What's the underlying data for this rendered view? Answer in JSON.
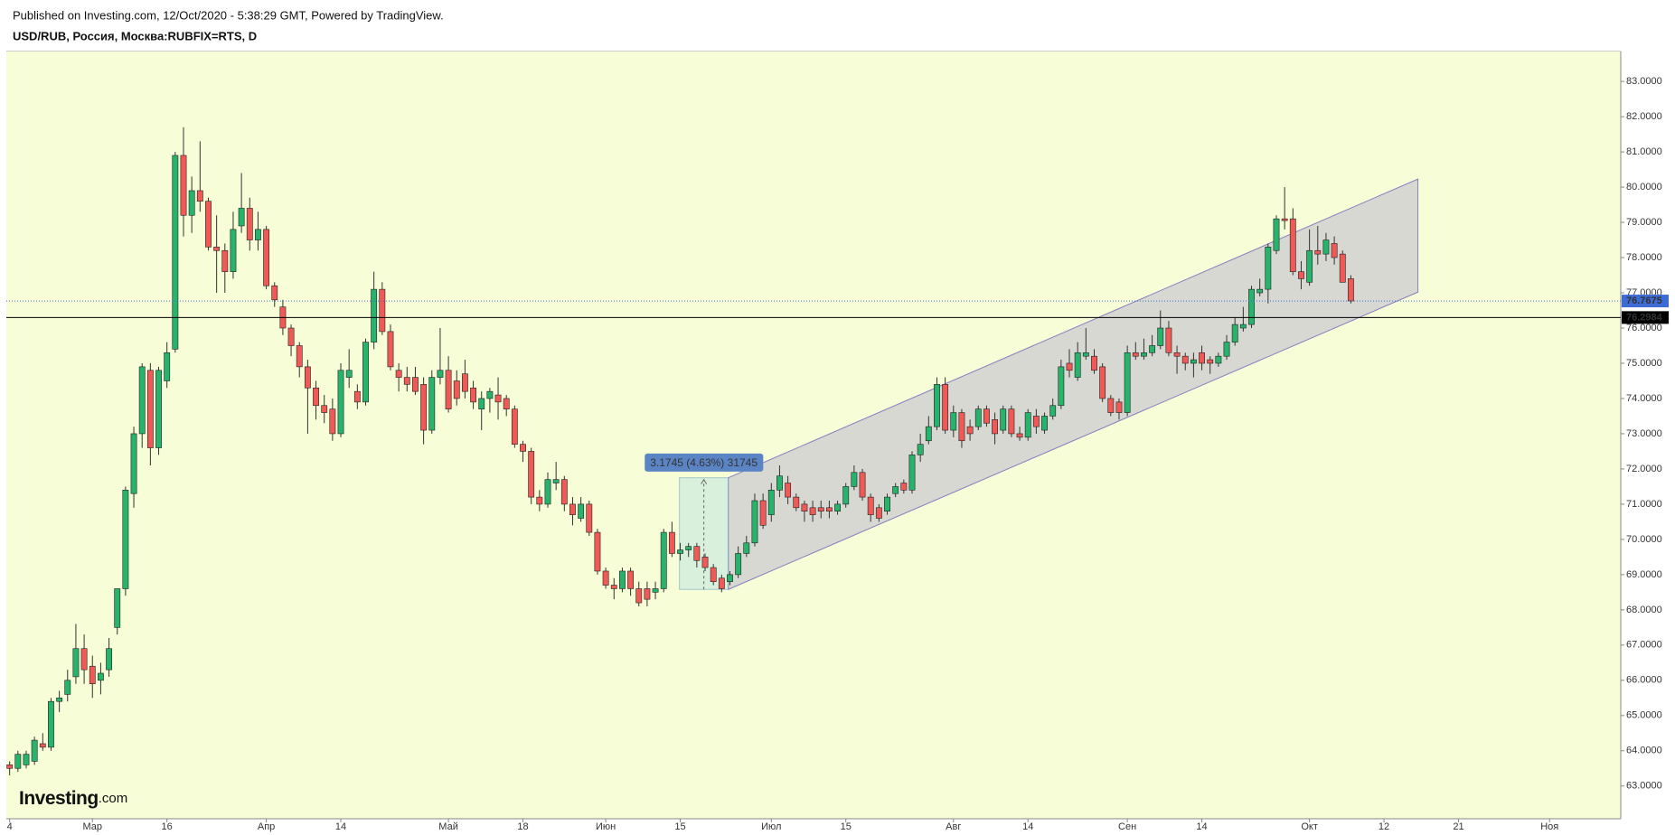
{
  "header": {
    "published": "Published on Investing.com, 12/Oct/2020 - 5:38:29 GMT, Powered by TradingView.",
    "symbol": "USD/RUB, Россия, Москва:RUBFIX=RTS, D"
  },
  "logo": {
    "brand": "Investing",
    "suffix": ".com"
  },
  "chart_data": {
    "type": "candlestick",
    "up_color": "#27b36b",
    "down_color": "#ef5a57",
    "wick_color": "#333333",
    "background": "#f6fdd7",
    "xlim": [
      -0.4,
      194.6
    ],
    "ylim": [
      62.07,
      83.85
    ],
    "xticks": [
      {
        "value": 0,
        "label": "4"
      },
      {
        "value": 10,
        "label": "Мар"
      },
      {
        "value": 19,
        "label": "16"
      },
      {
        "value": 31,
        "label": "Апр"
      },
      {
        "value": 40,
        "label": "14"
      },
      {
        "value": 53,
        "label": "Май"
      },
      {
        "value": 62,
        "label": "18"
      },
      {
        "value": 72,
        "label": "Июн"
      },
      {
        "value": 81,
        "label": "15"
      },
      {
        "value": 92,
        "label": "Июл"
      },
      {
        "value": 101,
        "label": "15"
      },
      {
        "value": 114,
        "label": "Авг"
      },
      {
        "value": 123,
        "label": "14"
      },
      {
        "value": 135,
        "label": "Сен"
      },
      {
        "value": 144,
        "label": "14"
      },
      {
        "value": 157,
        "label": "Окт"
      },
      {
        "value": 166,
        "label": "12"
      },
      {
        "value": 175,
        "label": "21"
      },
      {
        "value": 186,
        "label": "Ноя"
      }
    ],
    "yticks": [
      {
        "value": 63,
        "label": "63.0000"
      },
      {
        "value": 64,
        "label": "64.0000"
      },
      {
        "value": 65,
        "label": "65.0000"
      },
      {
        "value": 66,
        "label": "66.0000"
      },
      {
        "value": 67,
        "label": "67.0000"
      },
      {
        "value": 68,
        "label": "68.0000"
      },
      {
        "value": 69,
        "label": "69.0000"
      },
      {
        "value": 70,
        "label": "70.0000"
      },
      {
        "value": 71,
        "label": "71.0000"
      },
      {
        "value": 72,
        "label": "72.0000"
      },
      {
        "value": 73,
        "label": "73.0000"
      },
      {
        "value": 74,
        "label": "74.0000"
      },
      {
        "value": 75,
        "label": "75.0000"
      },
      {
        "value": 76,
        "label": "76.0000"
      },
      {
        "value": 77,
        "label": "77.0000"
      },
      {
        "value": 78,
        "label": "78.0000"
      },
      {
        "value": 79,
        "label": "79.0000"
      },
      {
        "value": 80,
        "label": "80.0000"
      },
      {
        "value": 81,
        "label": "81.0000"
      },
      {
        "value": 82,
        "label": "82.0000"
      },
      {
        "value": 83,
        "label": "83.0000"
      }
    ],
    "price_lines": [
      {
        "value": 76.7675,
        "color": "#3d6bd6",
        "dashed": true
      },
      {
        "value": 76.2984,
        "color": "#000000",
        "dashed": false
      }
    ],
    "channel": {
      "x": [
        86.8,
        170.1
      ],
      "lower": [
        68.58,
        77.02
      ],
      "upper": [
        71.75,
        80.23
      ],
      "color": "#8a7cc0"
    },
    "measure": {
      "x": [
        80.9,
        86.8
      ],
      "y": [
        68.58,
        71.75
      ],
      "label": "3.1745 (4.63%) 31745",
      "color": "#5b84c4"
    },
    "candles": [
      [
        63.6,
        63.7,
        63.3,
        63.5
      ],
      [
        63.5,
        64.0,
        63.4,
        63.9
      ],
      [
        63.6,
        64.0,
        63.5,
        63.9
      ],
      [
        63.7,
        64.4,
        63.6,
        64.3
      ],
      [
        64.2,
        64.5,
        64.0,
        64.1
      ],
      [
        64.1,
        65.5,
        64.0,
        65.4
      ],
      [
        65.4,
        65.7,
        65.1,
        65.5
      ],
      [
        65.6,
        66.3,
        65.4,
        66.0
      ],
      [
        66.1,
        67.6,
        65.9,
        66.9
      ],
      [
        66.9,
        67.3,
        65.9,
        66.3
      ],
      [
        66.4,
        66.7,
        65.5,
        65.9
      ],
      [
        66.0,
        66.5,
        65.6,
        66.2
      ],
      [
        66.3,
        67.2,
        66.1,
        66.9
      ],
      [
        67.5,
        68.6,
        67.3,
        68.6
      ],
      [
        68.6,
        71.5,
        68.4,
        71.4
      ],
      [
        71.3,
        73.2,
        70.9,
        73.0
      ],
      [
        73.0,
        75.0,
        72.6,
        74.9
      ],
      [
        74.8,
        75.0,
        72.1,
        72.6
      ],
      [
        72.6,
        74.9,
        72.4,
        74.8
      ],
      [
        74.5,
        75.6,
        74.3,
        75.3
      ],
      [
        75.4,
        81.0,
        75.3,
        80.9
      ],
      [
        80.9,
        81.7,
        78.6,
        79.2
      ],
      [
        79.2,
        80.3,
        78.7,
        79.9
      ],
      [
        79.9,
        81.3,
        79.3,
        79.6
      ],
      [
        79.6,
        79.7,
        78.2,
        78.3
      ],
      [
        78.3,
        79.2,
        77.0,
        78.2
      ],
      [
        78.2,
        78.4,
        77.0,
        77.6
      ],
      [
        77.6,
        79.3,
        77.4,
        78.8
      ],
      [
        78.9,
        80.4,
        78.7,
        79.4
      ],
      [
        79.4,
        79.7,
        78.2,
        78.5
      ],
      [
        78.5,
        79.3,
        78.2,
        78.8
      ],
      [
        78.8,
        78.9,
        77.1,
        77.2
      ],
      [
        77.2,
        77.3,
        76.6,
        76.8
      ],
      [
        76.6,
        76.8,
        75.8,
        76.0
      ],
      [
        76.0,
        76.1,
        75.2,
        75.5
      ],
      [
        75.5,
        75.6,
        74.6,
        74.9
      ],
      [
        74.9,
        75.1,
        73.0,
        74.3
      ],
      [
        74.3,
        74.5,
        73.4,
        73.8
      ],
      [
        73.8,
        74.1,
        73.3,
        73.6
      ],
      [
        73.7,
        74.0,
        72.8,
        73.0
      ],
      [
        73.0,
        75.0,
        72.9,
        74.8
      ],
      [
        74.6,
        75.4,
        74.3,
        74.8
      ],
      [
        74.2,
        74.4,
        73.7,
        73.9
      ],
      [
        73.9,
        75.7,
        73.8,
        75.6
      ],
      [
        75.6,
        77.6,
        75.4,
        77.1
      ],
      [
        77.1,
        77.3,
        75.8,
        75.9
      ],
      [
        75.9,
        76.1,
        74.8,
        74.9
      ],
      [
        74.8,
        75.0,
        74.2,
        74.6
      ],
      [
        74.6,
        74.9,
        74.2,
        74.4
      ],
      [
        74.6,
        74.9,
        74.1,
        74.2
      ],
      [
        74.4,
        74.6,
        72.7,
        73.1
      ],
      [
        73.1,
        74.8,
        73.0,
        74.6
      ],
      [
        74.6,
        76.0,
        74.4,
        74.8
      ],
      [
        74.8,
        75.2,
        73.6,
        73.7
      ],
      [
        74.5,
        74.8,
        73.8,
        74.0
      ],
      [
        74.7,
        75.1,
        74.0,
        74.2
      ],
      [
        74.3,
        74.5,
        73.7,
        73.9
      ],
      [
        73.7,
        74.2,
        73.1,
        74.0
      ],
      [
        74.0,
        74.3,
        73.6,
        74.2
      ],
      [
        74.1,
        74.6,
        73.4,
        73.9
      ],
      [
        74.0,
        74.1,
        73.5,
        73.7
      ],
      [
        73.7,
        73.8,
        72.6,
        72.7
      ],
      [
        72.7,
        72.8,
        72.2,
        72.5
      ],
      [
        72.5,
        72.6,
        71.0,
        71.2
      ],
      [
        71.2,
        71.4,
        70.8,
        71.0
      ],
      [
        71.0,
        71.9,
        70.9,
        71.7
      ],
      [
        71.6,
        72.2,
        71.4,
        71.7
      ],
      [
        71.7,
        71.8,
        70.8,
        71.0
      ],
      [
        71.0,
        71.2,
        70.4,
        70.7
      ],
      [
        70.6,
        71.2,
        70.5,
        71.0
      ],
      [
        71.0,
        71.1,
        70.1,
        70.2
      ],
      [
        70.2,
        70.3,
        69.0,
        69.1
      ],
      [
        69.1,
        69.2,
        68.6,
        68.7
      ],
      [
        68.7,
        68.9,
        68.3,
        68.6
      ],
      [
        68.6,
        69.2,
        68.5,
        69.1
      ],
      [
        69.1,
        69.2,
        68.4,
        68.6
      ],
      [
        68.6,
        68.8,
        68.1,
        68.2
      ],
      [
        68.6,
        68.8,
        68.1,
        68.3
      ],
      [
        68.5,
        68.8,
        68.3,
        68.6
      ],
      [
        68.6,
        70.3,
        68.5,
        70.2
      ],
      [
        70.2,
        70.5,
        69.5,
        69.6
      ],
      [
        69.6,
        69.9,
        69.4,
        69.7
      ],
      [
        69.7,
        69.9,
        69.5,
        69.8
      ],
      [
        69.8,
        69.9,
        69.2,
        69.4
      ],
      [
        69.5,
        69.6,
        69.1,
        69.2
      ],
      [
        69.2,
        69.3,
        68.7,
        68.8
      ],
      [
        68.9,
        69.0,
        68.5,
        68.6
      ],
      [
        68.8,
        69.1,
        68.7,
        69.0
      ],
      [
        69.0,
        69.8,
        68.9,
        69.6
      ],
      [
        69.6,
        70.1,
        69.5,
        69.9
      ],
      [
        69.9,
        71.3,
        69.8,
        71.1
      ],
      [
        71.1,
        71.3,
        70.3,
        70.4
      ],
      [
        70.7,
        71.6,
        70.5,
        71.4
      ],
      [
        71.4,
        72.1,
        71.2,
        71.8
      ],
      [
        71.6,
        71.8,
        71.0,
        71.2
      ],
      [
        71.2,
        71.3,
        70.8,
        70.9
      ],
      [
        71.0,
        71.1,
        70.5,
        70.8
      ],
      [
        70.9,
        71.1,
        70.5,
        70.7
      ],
      [
        70.9,
        71.1,
        70.6,
        70.8
      ],
      [
        70.9,
        71.1,
        70.6,
        70.8
      ],
      [
        70.8,
        71.1,
        70.7,
        71.0
      ],
      [
        71.0,
        71.6,
        70.9,
        71.5
      ],
      [
        71.5,
        72.1,
        71.4,
        71.9
      ],
      [
        71.9,
        72.0,
        71.1,
        71.2
      ],
      [
        71.2,
        71.3,
        70.5,
        70.7
      ],
      [
        70.9,
        71.0,
        70.5,
        70.6
      ],
      [
        70.8,
        71.3,
        70.7,
        71.2
      ],
      [
        71.3,
        71.6,
        71.2,
        71.5
      ],
      [
        71.6,
        71.7,
        71.3,
        71.4
      ],
      [
        71.4,
        72.5,
        71.3,
        72.4
      ],
      [
        72.4,
        73.0,
        72.2,
        72.7
      ],
      [
        72.8,
        73.5,
        72.7,
        73.2
      ],
      [
        73.2,
        74.6,
        73.1,
        74.4
      ],
      [
        74.4,
        74.6,
        73.0,
        73.1
      ],
      [
        73.1,
        73.8,
        72.9,
        73.6
      ],
      [
        73.6,
        73.7,
        72.6,
        72.8
      ],
      [
        73.2,
        73.4,
        72.8,
        73.0
      ],
      [
        73.2,
        73.8,
        73.1,
        73.7
      ],
      [
        73.7,
        73.8,
        73.2,
        73.3
      ],
      [
        73.4,
        73.6,
        72.7,
        73.0
      ],
      [
        73.1,
        73.8,
        73.0,
        73.7
      ],
      [
        73.7,
        73.8,
        72.9,
        73.0
      ],
      [
        73.0,
        73.2,
        72.8,
        72.9
      ],
      [
        72.9,
        73.7,
        72.8,
        73.6
      ],
      [
        73.5,
        73.7,
        73.0,
        73.2
      ],
      [
        73.1,
        73.6,
        73.0,
        73.5
      ],
      [
        73.5,
        74.0,
        73.4,
        73.8
      ],
      [
        73.8,
        75.1,
        73.7,
        74.9
      ],
      [
        75.0,
        75.4,
        74.6,
        74.8
      ],
      [
        74.6,
        75.6,
        74.5,
        75.3
      ],
      [
        75.2,
        76.0,
        75.1,
        75.3
      ],
      [
        75.2,
        75.4,
        74.7,
        74.8
      ],
      [
        74.9,
        75.0,
        73.9,
        74.0
      ],
      [
        74.0,
        74.1,
        73.5,
        73.6
      ],
      [
        73.9,
        74.0,
        73.4,
        73.6
      ],
      [
        73.6,
        75.5,
        73.5,
        75.3
      ],
      [
        75.3,
        75.6,
        75.1,
        75.2
      ],
      [
        75.2,
        75.7,
        75.1,
        75.3
      ],
      [
        75.3,
        75.8,
        75.2,
        75.5
      ],
      [
        75.5,
        76.5,
        75.4,
        76.0
      ],
      [
        76.0,
        76.2,
        75.2,
        75.3
      ],
      [
        75.3,
        75.5,
        74.7,
        75.2
      ],
      [
        75.2,
        75.3,
        74.8,
        75.0
      ],
      [
        75.0,
        75.3,
        74.6,
        75.1
      ],
      [
        75.3,
        75.5,
        74.8,
        75.0
      ],
      [
        75.1,
        75.2,
        74.7,
        75.0
      ],
      [
        75.0,
        75.3,
        74.9,
        75.2
      ],
      [
        75.2,
        75.8,
        75.1,
        75.6
      ],
      [
        75.6,
        76.3,
        75.5,
        76.1
      ],
      [
        76.0,
        76.6,
        75.9,
        76.1
      ],
      [
        76.1,
        77.2,
        76.0,
        77.1
      ],
      [
        77.0,
        77.4,
        76.9,
        77.1
      ],
      [
        77.1,
        78.4,
        76.7,
        78.3
      ],
      [
        78.2,
        79.2,
        78.1,
        79.1
      ],
      [
        79.1,
        80.0,
        78.8,
        79.05
      ],
      [
        79.1,
        79.4,
        77.5,
        77.6
      ],
      [
        77.6,
        77.9,
        77.1,
        77.4
      ],
      [
        77.3,
        78.8,
        77.2,
        78.2
      ],
      [
        78.2,
        78.9,
        77.8,
        78.1
      ],
      [
        78.1,
        78.7,
        77.9,
        78.5
      ],
      [
        78.4,
        78.6,
        77.8,
        78.0
      ],
      [
        78.1,
        78.2,
        77.3,
        77.3
      ],
      [
        77.4,
        77.5,
        76.7,
        76.77
      ]
    ]
  }
}
